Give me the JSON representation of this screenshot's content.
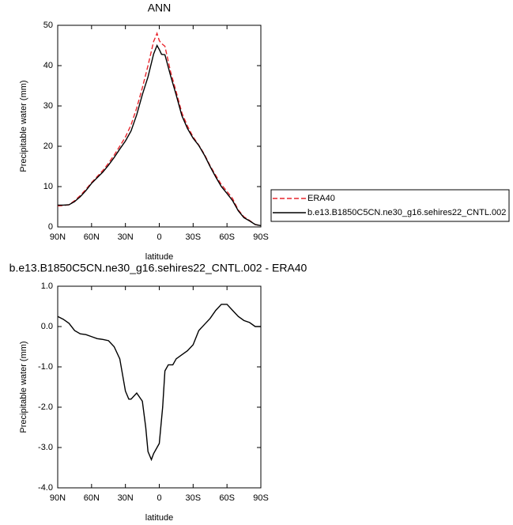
{
  "chart_data": [
    {
      "type": "line",
      "title": "ANN",
      "xlabel": "latitude",
      "ylabel": "Precipitable water (mm)",
      "x": [
        90,
        85,
        80,
        75,
        70,
        65,
        60,
        55,
        50,
        45,
        40,
        35,
        30,
        25,
        20,
        15,
        10,
        5,
        2,
        0,
        -2,
        -5,
        -10,
        -15,
        -20,
        -25,
        -30,
        -35,
        -40,
        -45,
        -50,
        -55,
        -60,
        -65,
        -70,
        -75,
        -80,
        -85,
        -90
      ],
      "series": [
        {
          "name": "ERA40",
          "color": "#e8262d",
          "style": "dashed",
          "values": [
            5.2,
            5.3,
            5.5,
            6.5,
            7.8,
            9.3,
            11,
            12.5,
            14,
            15.8,
            17.8,
            20,
            22.3,
            25.3,
            29.5,
            34.5,
            40,
            46,
            48,
            46.2,
            45.5,
            44.8,
            38.5,
            33.5,
            28.3,
            25,
            22.3,
            20.3,
            18,
            15.2,
            12.8,
            10.5,
            8.8,
            7,
            4.2,
            2.5,
            1.6,
            0.6,
            0.3
          ]
        },
        {
          "name": "b.e13.B1850C5CN.ne30_g16.sehires22_CNTL.002",
          "color": "#000000",
          "style": "solid",
          "values": [
            5.4,
            5.4,
            5.5,
            6.3,
            7.5,
            9,
            10.8,
            12.2,
            13.6,
            15.3,
            17.2,
            19.3,
            21.3,
            23.8,
            27.8,
            32.8,
            37.2,
            42.9,
            45,
            44,
            42.8,
            42.7,
            37.5,
            32.7,
            27.6,
            24.4,
            22,
            20.2,
            17.8,
            15,
            12.4,
            10,
            8.3,
            6.5,
            4,
            2.3,
            1.5,
            0.6,
            0.3
          ]
        }
      ],
      "xlim": [
        90,
        -90
      ],
      "xticks": [
        {
          "value": 90,
          "label": "90N"
        },
        {
          "value": 60,
          "label": "60N"
        },
        {
          "value": 30,
          "label": "30N"
        },
        0,
        {
          "value": -30,
          "label": "30S"
        },
        {
          "value": -60,
          "label": "60S"
        },
        {
          "value": -90,
          "label": "90S"
        }
      ],
      "ylim": [
        0,
        50
      ],
      "yticks": [
        0,
        10,
        20,
        30,
        40,
        50
      ]
    },
    {
      "type": "line",
      "title": "b.e13.B1850C5CN.ne30_g16.sehires22_CNTL.002 - ERA40",
      "xlabel": "latitude",
      "ylabel": "Precipitable water (mm)",
      "x": [
        90,
        85,
        80,
        75,
        70,
        65,
        60,
        55,
        50,
        45,
        40,
        35,
        30,
        27,
        25,
        20,
        15,
        12,
        10,
        7,
        5,
        0,
        -3,
        -5,
        -8,
        -12,
        -15,
        -20,
        -25,
        -30,
        -35,
        -40,
        -45,
        -50,
        -55,
        -60,
        -65,
        -70,
        -75,
        -80,
        -85,
        -90
      ],
      "series": [
        {
          "color": "#000000",
          "style": "solid",
          "values": [
            0.25,
            0.18,
            0.08,
            -0.1,
            -0.18,
            -0.2,
            -0.25,
            -0.3,
            -0.32,
            -0.35,
            -0.5,
            -0.8,
            -1.6,
            -1.8,
            -1.8,
            -1.65,
            -1.85,
            -2.5,
            -3.1,
            -3.3,
            -3.15,
            -2.9,
            -2.0,
            -1.1,
            -0.95,
            -0.95,
            -0.8,
            -0.7,
            -0.6,
            -0.45,
            -0.1,
            0.05,
            0.2,
            0.4,
            0.55,
            0.55,
            0.4,
            0.25,
            0.15,
            0.1,
            0.0,
            0.0
          ]
        }
      ],
      "xlim": [
        90,
        -90
      ],
      "xticks": [
        {
          "value": 90,
          "label": "90N"
        },
        {
          "value": 60,
          "label": "60N"
        },
        {
          "value": 30,
          "label": "30N"
        },
        0,
        {
          "value": -30,
          "label": "30S"
        },
        {
          "value": -60,
          "label": "60S"
        },
        {
          "value": -90,
          "label": "90S"
        }
      ],
      "ylim": [
        -4,
        1
      ],
      "yticks": [
        {
          "value": -4,
          "label": "-4.0"
        },
        {
          "value": -3,
          "label": "-3.0"
        },
        {
          "value": -2,
          "label": "-2.0"
        },
        {
          "value": -1,
          "label": "-1.0"
        },
        {
          "value": 0,
          "label": "0.0"
        },
        {
          "value": 1,
          "label": "1.0"
        }
      ]
    }
  ]
}
